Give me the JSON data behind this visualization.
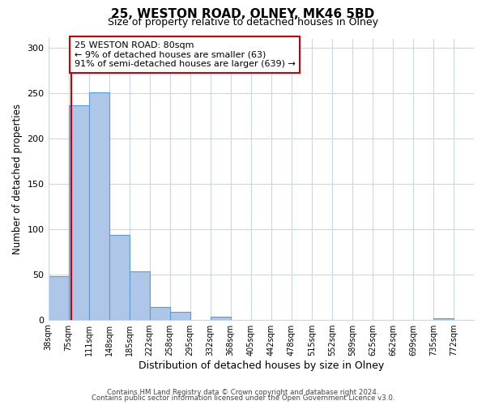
{
  "title": "25, WESTON ROAD, OLNEY, MK46 5BD",
  "subtitle": "Size of property relative to detached houses in Olney",
  "xlabel": "Distribution of detached houses by size in Olney",
  "ylabel": "Number of detached properties",
  "bin_labels": [
    "38sqm",
    "75sqm",
    "111sqm",
    "148sqm",
    "185sqm",
    "222sqm",
    "258sqm",
    "295sqm",
    "332sqm",
    "368sqm",
    "405sqm",
    "442sqm",
    "478sqm",
    "515sqm",
    "552sqm",
    "589sqm",
    "625sqm",
    "662sqm",
    "699sqm",
    "735sqm",
    "772sqm"
  ],
  "bar_values": [
    48,
    236,
    251,
    93,
    53,
    14,
    9,
    0,
    3,
    0,
    0,
    0,
    0,
    0,
    0,
    0,
    0,
    0,
    0,
    1,
    0
  ],
  "bar_color": "#aec6e8",
  "bar_edge_color": "#5b9bd5",
  "property_size": 80,
  "bin_edges_val": [
    38,
    75,
    111,
    148,
    185,
    222,
    258,
    295,
    332,
    368,
    405,
    442,
    478,
    515,
    552,
    589,
    625,
    662,
    699,
    735,
    772
  ],
  "vline_color": "#cc0000",
  "annotation_text": "25 WESTON ROAD: 80sqm\n← 9% of detached houses are smaller (63)\n91% of semi-detached houses are larger (639) →",
  "annotation_box_color": "#ffffff",
  "annotation_box_edge_color": "#cc0000",
  "ylim": [
    0,
    310
  ],
  "yticks": [
    0,
    50,
    100,
    150,
    200,
    250,
    300
  ],
  "footer_line1": "Contains HM Land Registry data © Crown copyright and database right 2024.",
  "footer_line2": "Contains public sector information licensed under the Open Government Licence v3.0.",
  "background_color": "#ffffff",
  "grid_color": "#c8d8ea"
}
